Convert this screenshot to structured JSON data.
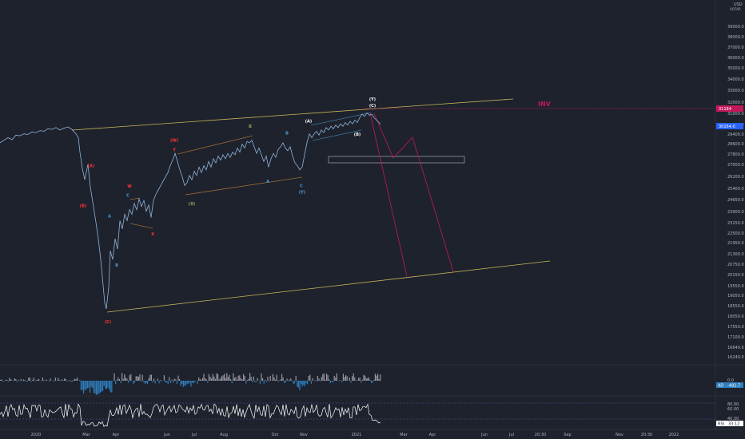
{
  "chart_data": {
    "type": "line",
    "symbol_note": "Dow Jones style index — candles approximated as a line",
    "currency_label": "USD",
    "price_axis_unit_label": "ΛΟΓΑΡ.",
    "y_ticks": [
      "39000.0",
      "38000.0",
      "37000.0",
      "36000.0",
      "35000.0",
      "34000.0",
      "33000.0",
      "32000.0",
      "31000.0",
      "30164.0",
      "29400.0",
      "28600.0",
      "27800.0",
      "27000.0",
      "26200.0",
      "25400.0",
      "24650.0",
      "23900.0",
      "23150.0",
      "22500.0",
      "21950.0",
      "21300.0",
      "20750.0",
      "20150.0",
      "19550.0",
      "19050.0",
      "18550.0",
      "18050.0",
      "17550.0",
      "17100.0",
      "16640.0",
      "16240.0"
    ],
    "current_price_label": "30164.0",
    "inv_price_label": "31184",
    "inv_price_prefix": "3",
    "inv_text": "INV",
    "x_ticks": [
      "2020",
      "Mar",
      "Apr",
      "Jun",
      "Jul",
      "Aug",
      "Oct",
      "Nov",
      "2021",
      "Mar",
      "Apr",
      "Jun",
      "Jul",
      "20:30",
      "Sep",
      "Nov",
      "20:30",
      "2022"
    ],
    "price_path": [
      [
        0,
        28700
      ],
      [
        5,
        28900
      ],
      [
        10,
        29100
      ],
      [
        15,
        28950
      ],
      [
        20,
        29300
      ],
      [
        25,
        29250
      ],
      [
        30,
        29400
      ],
      [
        35,
        29350
      ],
      [
        40,
        29550
      ],
      [
        45,
        29500
      ],
      [
        50,
        29650
      ],
      [
        55,
        29600
      ],
      [
        60,
        29800
      ],
      [
        65,
        29750
      ],
      [
        70,
        29900
      ],
      [
        75,
        29700
      ],
      [
        80,
        29850
      ],
      [
        85,
        29950
      ],
      [
        90,
        29750
      ],
      [
        95,
        29400
      ],
      [
        98,
        29100
      ],
      [
        100,
        28000
      ],
      [
        103,
        26800
      ],
      [
        106,
        26000
      ],
      [
        110,
        27100
      ],
      [
        113,
        25500
      ],
      [
        116,
        24500
      ],
      [
        120,
        23200
      ],
      [
        123,
        22200
      ],
      [
        126,
        21000
      ],
      [
        129,
        19600
      ],
      [
        131,
        18700
      ],
      [
        133,
        18400
      ],
      [
        136,
        19500
      ],
      [
        138,
        21500
      ],
      [
        141,
        21000
      ],
      [
        144,
        22200
      ],
      [
        147,
        21600
      ],
      [
        150,
        23300
      ],
      [
        153,
        22800
      ],
      [
        156,
        23700
      ],
      [
        159,
        23300
      ],
      [
        162,
        24000
      ],
      [
        165,
        23700
      ],
      [
        168,
        24400
      ],
      [
        171,
        24000
      ],
      [
        174,
        24700
      ],
      [
        177,
        24200
      ],
      [
        180,
        24600
      ],
      [
        183,
        23900
      ],
      [
        186,
        24300
      ],
      [
        189,
        23500
      ],
      [
        192,
        24600
      ],
      [
        195,
        25000
      ],
      [
        198,
        25300
      ],
      [
        201,
        25600
      ],
      [
        204,
        25900
      ],
      [
        207,
        26200
      ],
      [
        210,
        26500
      ],
      [
        213,
        27000
      ],
      [
        216,
        27400
      ],
      [
        219,
        27900
      ],
      [
        222,
        27300
      ],
      [
        225,
        26700
      ],
      [
        228,
        26200
      ],
      [
        231,
        25600
      ],
      [
        234,
        25800
      ],
      [
        237,
        26300
      ],
      [
        240,
        26000
      ],
      [
        243,
        26600
      ],
      [
        246,
        26300
      ],
      [
        249,
        26900
      ],
      [
        252,
        26500
      ],
      [
        255,
        27000
      ],
      [
        258,
        26700
      ],
      [
        261,
        27300
      ],
      [
        264,
        26900
      ],
      [
        267,
        27500
      ],
      [
        270,
        27200
      ],
      [
        273,
        27700
      ],
      [
        276,
        27400
      ],
      [
        279,
        27800
      ],
      [
        282,
        27500
      ],
      [
        285,
        27900
      ],
      [
        288,
        27600
      ],
      [
        291,
        28000
      ],
      [
        294,
        27800
      ],
      [
        297,
        28300
      ],
      [
        300,
        28000
      ],
      [
        303,
        28600
      ],
      [
        306,
        28300
      ],
      [
        309,
        28800
      ],
      [
        312,
        28700
      ],
      [
        315,
        28900
      ],
      [
        318,
        28400
      ],
      [
        321,
        27900
      ],
      [
        324,
        28300
      ],
      [
        327,
        27800
      ],
      [
        330,
        27300
      ],
      [
        333,
        27700
      ],
      [
        336,
        26900
      ],
      [
        339,
        27500
      ],
      [
        342,
        27900
      ],
      [
        345,
        27600
      ],
      [
        348,
        28200
      ],
      [
        351,
        28400
      ],
      [
        354,
        28700
      ],
      [
        357,
        28300
      ],
      [
        360,
        28100
      ],
      [
        363,
        28400
      ],
      [
        366,
        27700
      ],
      [
        369,
        27200
      ],
      [
        372,
        27000
      ],
      [
        375,
        26700
      ],
      [
        378,
        26900
      ],
      [
        381,
        27800
      ],
      [
        384,
        28700
      ],
      [
        387,
        29400
      ],
      [
        390,
        29100
      ],
      [
        393,
        29400
      ],
      [
        396,
        29600
      ],
      [
        399,
        29300
      ],
      [
        402,
        29700
      ],
      [
        405,
        29500
      ],
      [
        408,
        29900
      ],
      [
        411,
        29700
      ],
      [
        414,
        30000
      ],
      [
        417,
        29800
      ],
      [
        420,
        30100
      ],
      [
        423,
        29900
      ],
      [
        426,
        30200
      ],
      [
        429,
        30000
      ],
      [
        432,
        30300
      ],
      [
        435,
        30100
      ],
      [
        438,
        30400
      ],
      [
        441,
        30200
      ],
      [
        444,
        30500
      ],
      [
        447,
        30300
      ],
      [
        450,
        30700
      ],
      [
        453,
        31000
      ],
      [
        456,
        30800
      ],
      [
        459,
        31100
      ],
      [
        462,
        30900
      ],
      [
        465,
        31000
      ],
      [
        468,
        30700
      ],
      [
        471,
        30500
      ],
      [
        474,
        30300
      ],
      [
        476,
        30150
      ]
    ],
    "wave_labels": [
      {
        "text": "(A)",
        "color": "#ff3333",
        "x": 114,
        "y": 26900
      },
      {
        "text": "(B)",
        "color": "#ff3333",
        "x": 104,
        "y": 24150
      },
      {
        "text": "(C)",
        "color": "#ff3333",
        "x": 135,
        "y": 17700
      },
      {
        "text": "A",
        "color": "#4b9cd3",
        "x": 137,
        "y": 23500
      },
      {
        "text": "B",
        "color": "#4b9cd3",
        "x": 146,
        "y": 20600
      },
      {
        "text": "W",
        "color": "#ff3333",
        "x": 162,
        "y": 25450
      },
      {
        "text": "C",
        "color": "#4b9cd3",
        "x": 160,
        "y": 24850
      },
      {
        "text": "X",
        "color": "#ff3333",
        "x": 191,
        "y": 22400
      },
      {
        "text": "(W)",
        "color": "#ff3333",
        "x": 218,
        "y": 28800
      },
      {
        "text": "Y",
        "color": "#ff3333",
        "x": 218,
        "y": 28050
      },
      {
        "text": "(X)",
        "color": "#9fa35a",
        "x": 240,
        "y": 24300
      },
      {
        "text": "B",
        "color": "#9fa35a",
        "x": 313,
        "y": 29900
      },
      {
        "text": "A",
        "color": "#4b9cd3",
        "x": 335,
        "y": 25800
      },
      {
        "text": "B",
        "color": "#4b9cd3",
        "x": 359,
        "y": 29350
      },
      {
        "text": "C",
        "color": "#4b9cd3",
        "x": 377,
        "y": 25500
      },
      {
        "text": "(Y)",
        "color": "#4b9cd3",
        "x": 378,
        "y": 25050
      },
      {
        "text": "(A)",
        "color": "#ffffff",
        "x": 386,
        "y": 30300
      },
      {
        "text": "(B)",
        "color": "#ffffff",
        "x": 447,
        "y": 29250
      },
      {
        "text": "(Y)",
        "color": "#ffffff",
        "x": 466,
        "y": 32150
      },
      {
        "text": "(C)",
        "color": "#ffffff",
        "x": 466,
        "y": 31600
      }
    ],
    "ad_indicator": {
      "label": "AD",
      "value": "-482.7",
      "ticks": [
        "0.0",
        "-482.7"
      ]
    },
    "rsi_indicator": {
      "label": "RSI",
      "value": "33.12",
      "ticks": [
        "80.00",
        "60.00",
        "40.00"
      ]
    }
  },
  "colors": {
    "background": "#1e222d",
    "price": "#8fb4d9",
    "channel": "#c9b458",
    "wave_channel": "#d08a3a",
    "projection": "#c2185b",
    "inv_line": "#c2185b",
    "box": "#9598a1",
    "ad_up": "#9598a1",
    "ad_down": "#2f7fbf",
    "rsi": "#ffffff",
    "axis_text": "#b2b5be",
    "current_price_tag": "#2962ff",
    "inv_tag": "#c2185b"
  }
}
